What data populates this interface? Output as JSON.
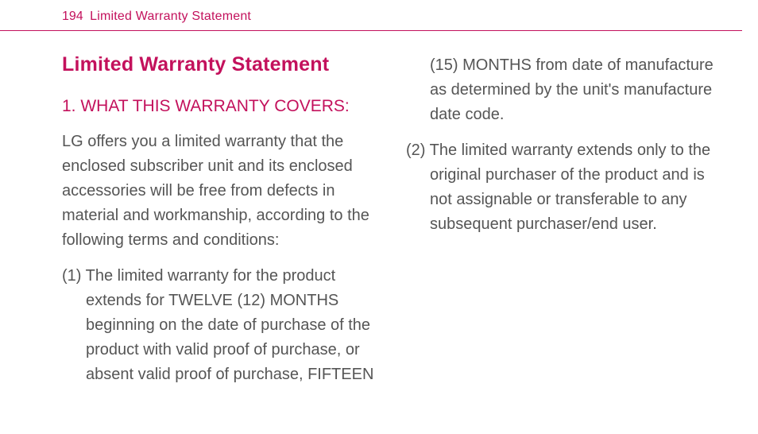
{
  "colors": {
    "accent": "#c3115c",
    "text": "#555555",
    "headerBorder": "#c3115c"
  },
  "header": {
    "pageNumber": "194",
    "title": "Limited Warranty Statement"
  },
  "doc": {
    "title": "Limited Warranty Statement",
    "section1": {
      "number": "1.",
      "heading": "WHAT THIS WARRANTY COVERS:",
      "intro": "LG offers you a limited warranty that the enclosed subscriber unit and its enclosed accessories will be free from defects in material and workmanship, according to the following terms and conditions:",
      "items": [
        "(1) The limited warranty for the product extends for TWELVE (12) MONTHS beginning on the date of purchase of the product with valid proof of purchase, or absent valid proof of purchase, FIFTEEN (15) MONTHS from date of manufacture as determined by the unit's manufacture date code.",
        "(2) The limited warranty extends only to the original purchaser of the product and is not assignable or transferable to any subsequent purchaser/end user."
      ]
    }
  }
}
